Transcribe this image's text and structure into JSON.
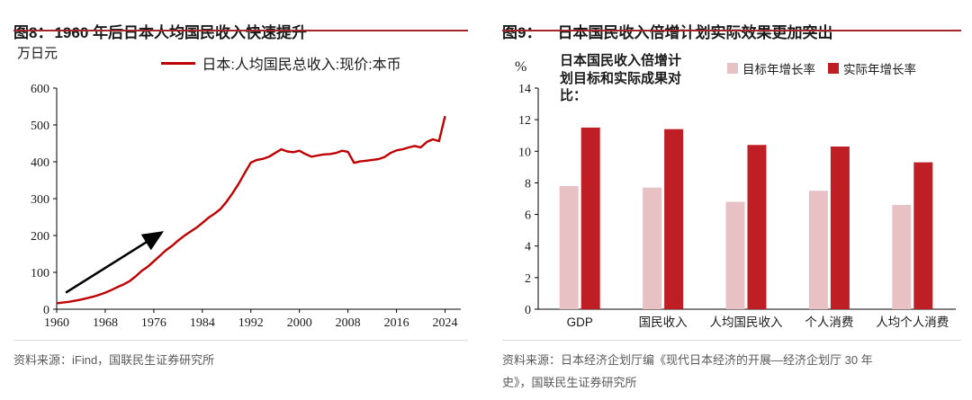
{
  "colors": {
    "accent_rule": "#a6252b",
    "line_red": "#c00000",
    "bar_target_pink": "#e8c1c5",
    "bar_actual_red": "#bf1e24",
    "source_gray": "#595959"
  },
  "figure8": {
    "title_label": "图8：",
    "title_text": "1960 年后日本人均国民收入快速提升",
    "y_unit": "万日元",
    "legend": "日本:人均国民总收入:现价:本币",
    "source": "资料来源：iFind，国联民生证券研究所"
  },
  "figure9": {
    "title_label": "图9：",
    "title_text": "日本国民收入倍增计划实际效果更加突出",
    "y_unit": "%",
    "note_lines": [
      "日本国民收入倍增计",
      "划目标和实际成果对",
      "比："
    ],
    "legend": [
      "目标年增长率",
      "实际年增长率"
    ],
    "source_lines": [
      "资料来源：日本经济企划厅编《现代日本经济的开展—经济企划厅 30 年",
      "史》，国联民生证券研究所"
    ]
  },
  "chart_data": [
    {
      "type": "line",
      "title": "图8：1960 年后日本人均国民收入快速提升",
      "ylabel": "万日元",
      "xlabel": "",
      "grid": false,
      "legend_position": "top",
      "xlim": [
        1960,
        2026
      ],
      "ylim": [
        0,
        600
      ],
      "yticks": [
        0,
        100,
        200,
        300,
        400,
        500,
        600
      ],
      "xticks": [
        1960,
        1968,
        1976,
        1984,
        1992,
        2000,
        2008,
        2016,
        2024
      ],
      "arrow": {
        "from": [
          1961.5,
          45
        ],
        "to": [
          1977,
          205
        ]
      },
      "series": [
        {
          "name": "日本:人均国民总收入:现价:本币",
          "color": "#c00000",
          "x": [
            1960,
            1961,
            1962,
            1963,
            1964,
            1965,
            1966,
            1967,
            1968,
            1969,
            1970,
            1971,
            1972,
            1973,
            1974,
            1975,
            1976,
            1977,
            1978,
            1979,
            1980,
            1981,
            1982,
            1983,
            1984,
            1985,
            1986,
            1987,
            1988,
            1989,
            1990,
            1991,
            1992,
            1993,
            1994,
            1995,
            1996,
            1997,
            1998,
            1999,
            2000,
            2001,
            2002,
            2003,
            2004,
            2005,
            2006,
            2007,
            2008,
            2009,
            2010,
            2011,
            2012,
            2013,
            2014,
            2015,
            2016,
            2017,
            2018,
            2019,
            2020,
            2021,
            2022,
            2023,
            2024
          ],
          "y": [
            16,
            18,
            20,
            23,
            26,
            30,
            34,
            39,
            45,
            52,
            60,
            67,
            76,
            89,
            104,
            115,
            130,
            145,
            160,
            172,
            186,
            199,
            210,
            221,
            234,
            248,
            259,
            272,
            292,
            315,
            341,
            370,
            398,
            405,
            408,
            414,
            424,
            434,
            428,
            426,
            430,
            421,
            414,
            417,
            420,
            421,
            424,
            430,
            427,
            397,
            401,
            403,
            405,
            407,
            413,
            424,
            431,
            434,
            439,
            443,
            439,
            454,
            461,
            456,
            524
          ]
        }
      ]
    },
    {
      "type": "bar",
      "title": "图9：日本国民收入倍增计划实际效果更加突出",
      "ylabel": "%",
      "xlabel": "",
      "grid": false,
      "legend_position": "top-right",
      "note": "日本国民收入倍增计划目标和实际成果对比：",
      "ylim": [
        0,
        14
      ],
      "yticks": [
        0,
        2,
        4,
        6,
        8,
        10,
        12,
        14
      ],
      "categories": [
        "GDP",
        "国民收入",
        "人均国民收入",
        "个人消费",
        "人均个人消费"
      ],
      "series": [
        {
          "name": "目标年增长率",
          "color": "#e8c1c5",
          "values": [
            7.8,
            7.7,
            6.8,
            7.5,
            6.6
          ]
        },
        {
          "name": "实际年增长率",
          "color": "#bf1e24",
          "values": [
            11.5,
            11.4,
            10.4,
            10.3,
            9.3
          ]
        }
      ]
    }
  ]
}
